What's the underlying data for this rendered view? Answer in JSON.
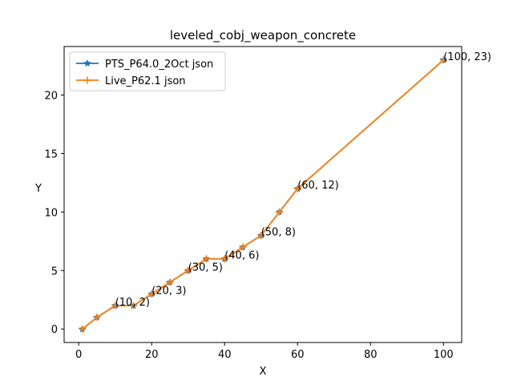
{
  "chart_data": {
    "type": "line",
    "title": "leveled_cobj_weapon_concrete",
    "xlabel": "X",
    "ylabel": "Y",
    "xlim": [
      -4,
      105
    ],
    "ylim": [
      -1.15,
      24.15
    ],
    "xticks": [
      0,
      20,
      40,
      60,
      80,
      100
    ],
    "yticks": [
      0,
      5,
      10,
      15,
      20
    ],
    "grid": false,
    "legend_position": "upper-left",
    "series": [
      {
        "name": "PTS_P64.0_2Oct json",
        "color": "#1f77b4",
        "marker": "star",
        "points": [
          [
            1,
            0
          ],
          [
            5,
            1
          ],
          [
            10,
            2
          ],
          [
            15,
            2
          ],
          [
            20,
            3
          ],
          [
            25,
            4
          ],
          [
            30,
            5
          ],
          [
            35,
            6
          ],
          [
            40,
            6
          ],
          [
            45,
            7
          ],
          [
            50,
            8
          ],
          [
            55,
            10
          ],
          [
            60,
            12
          ],
          [
            100,
            23
          ]
        ]
      },
      {
        "name": "Live_P62.1 json",
        "color": "#ff7f0e",
        "marker": "plus",
        "points": [
          [
            1,
            0
          ],
          [
            5,
            1
          ],
          [
            10,
            2
          ],
          [
            15,
            2
          ],
          [
            20,
            3
          ],
          [
            25,
            4
          ],
          [
            30,
            5
          ],
          [
            35,
            6
          ],
          [
            40,
            6
          ],
          [
            45,
            7
          ],
          [
            50,
            8
          ],
          [
            55,
            10
          ],
          [
            60,
            12
          ],
          [
            100,
            23
          ]
        ]
      }
    ],
    "annotations": [
      {
        "x": 10,
        "y": 2,
        "text": "(10, 2)"
      },
      {
        "x": 20,
        "y": 3,
        "text": "(20, 3)"
      },
      {
        "x": 30,
        "y": 5,
        "text": "(30, 5)"
      },
      {
        "x": 40,
        "y": 6,
        "text": "(40, 6)"
      },
      {
        "x": 50,
        "y": 8,
        "text": "(50, 8)"
      },
      {
        "x": 60,
        "y": 12,
        "text": "(60, 12)"
      },
      {
        "x": 100,
        "y": 23,
        "text": "(100, 23)"
      }
    ]
  }
}
